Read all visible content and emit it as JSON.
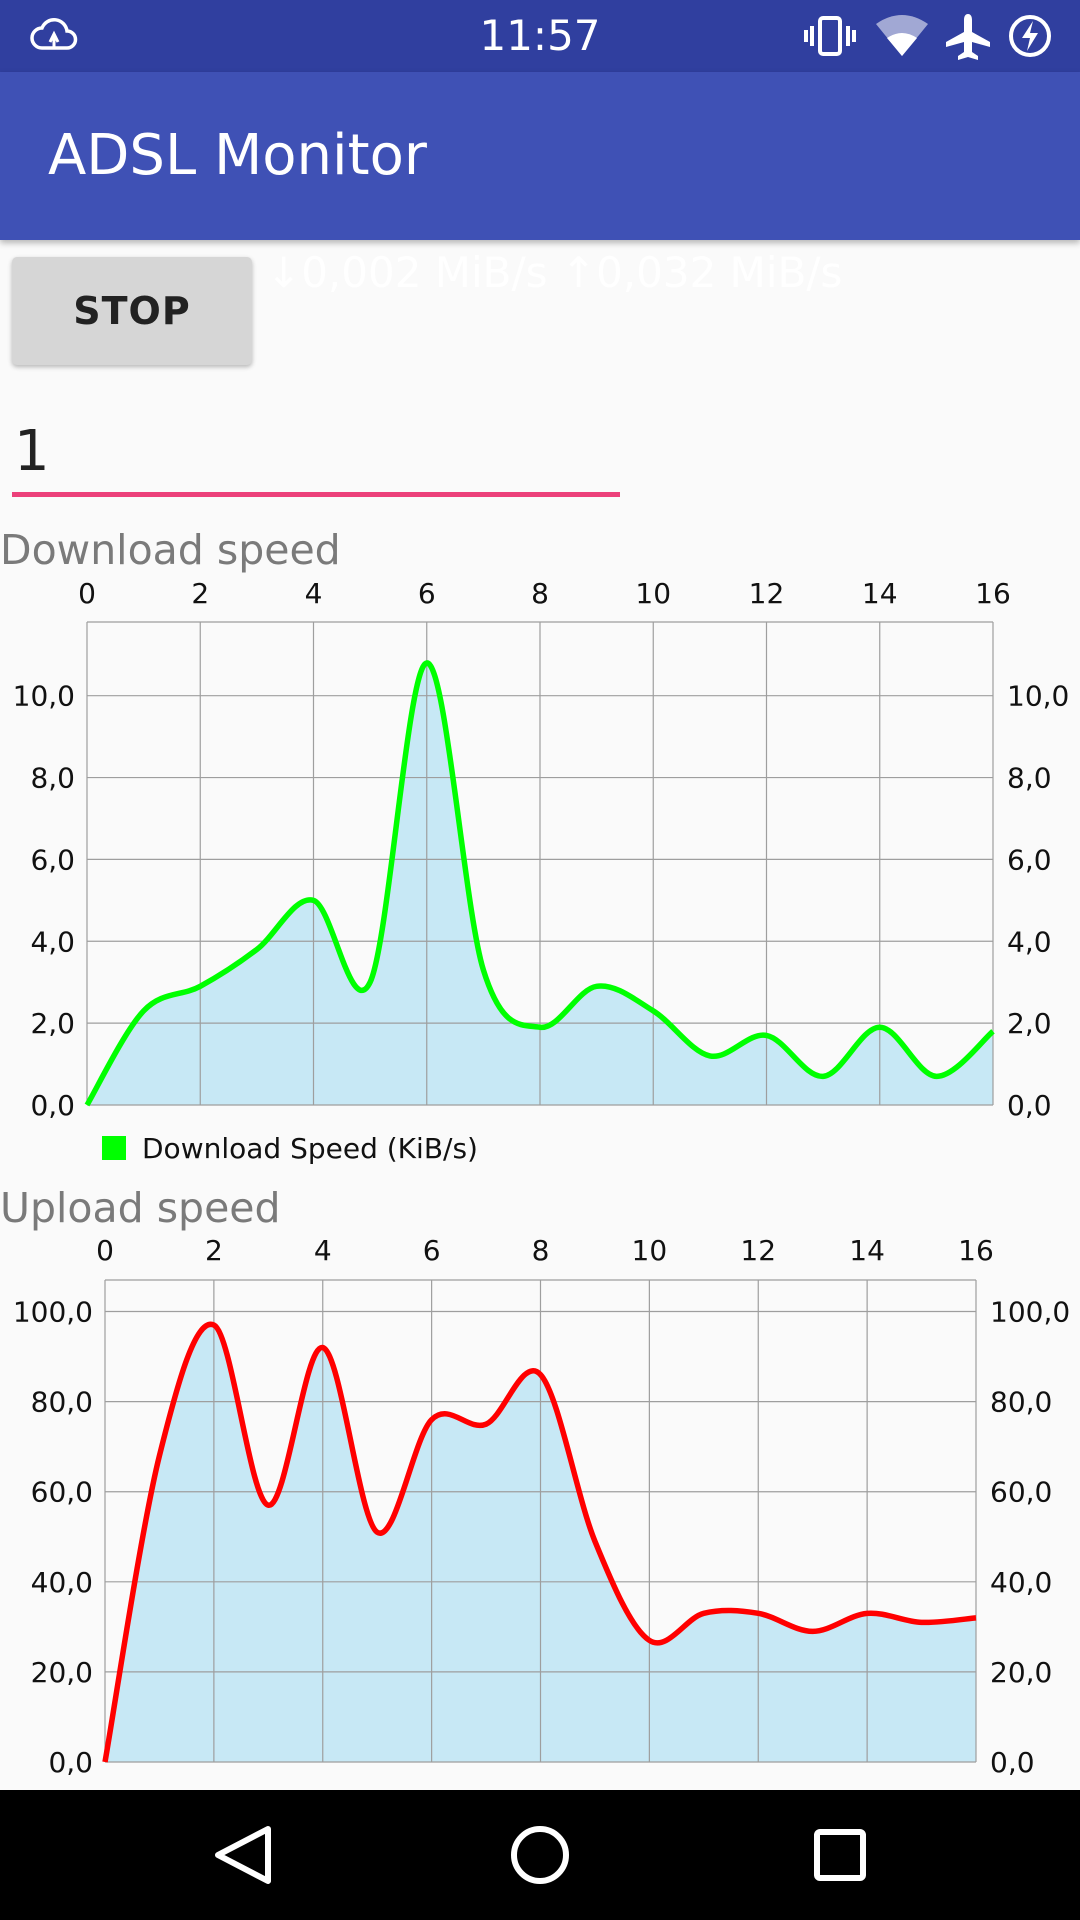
{
  "status_bar": {
    "time": "11:57",
    "icons": [
      "cloud-sync-icon",
      "vibrate-icon",
      "wifi-icon",
      "airplane-icon",
      "battery-charging-icon"
    ]
  },
  "app": {
    "title": "ADSL Monitor"
  },
  "controls": {
    "stop_label": "STOP",
    "down_speed": "↓0,002 MiB/s",
    "up_speed": "↑0,032 MiB/s",
    "interval_value": "1"
  },
  "colors": {
    "status_bar": "#303f9f",
    "app_bar": "#3f51b5",
    "input_underline": "#ec407a",
    "area_fill": "#c7e8f5",
    "download_line": "#00ff00",
    "upload_line": "#ff0000"
  },
  "chart_data": [
    {
      "type": "area",
      "title": "Download speed",
      "series": [
        {
          "name": "Download Speed (KiB/s)",
          "x": [
            0,
            1,
            2,
            3,
            4,
            5,
            6,
            7,
            8,
            9,
            10,
            11,
            12,
            13,
            14,
            15,
            16
          ],
          "values": [
            0.0,
            2.3,
            2.9,
            3.8,
            5.0,
            3.0,
            10.8,
            3.3,
            1.9,
            2.9,
            2.3,
            1.2,
            1.7,
            0.7,
            1.9,
            0.7,
            1.8
          ]
        }
      ],
      "xlim": [
        0,
        16
      ],
      "ylim": [
        0,
        11.8
      ],
      "x_ticks": [
        "0",
        "2",
        "4",
        "6",
        "8",
        "10",
        "12",
        "14",
        "16"
      ],
      "y_ticks": [
        "0,0",
        "2,0",
        "4,0",
        "6,0",
        "8,0",
        "10,0"
      ],
      "legend": "bottom-left",
      "grid": true
    },
    {
      "type": "area",
      "title": "Upload speed",
      "series": [
        {
          "x": [
            0,
            1,
            2,
            3,
            4,
            5,
            6,
            7,
            8,
            9,
            10,
            11,
            12,
            13,
            14,
            15,
            16
          ],
          "values": [
            0,
            68,
            97,
            57,
            92,
            51,
            76,
            75,
            86,
            49,
            27,
            33,
            33,
            29,
            33,
            31,
            32
          ]
        }
      ],
      "xlim": [
        0,
        16
      ],
      "ylim": [
        0,
        107
      ],
      "x_ticks": [
        "0",
        "2",
        "4",
        "6",
        "8",
        "10",
        "12",
        "14",
        "16"
      ],
      "y_ticks": [
        "0,0",
        "20,0",
        "40,0",
        "60,0",
        "80,0",
        "100,0"
      ],
      "grid": true
    }
  ],
  "nav": {
    "icons": [
      "back-icon",
      "home-icon",
      "recents-icon"
    ]
  }
}
